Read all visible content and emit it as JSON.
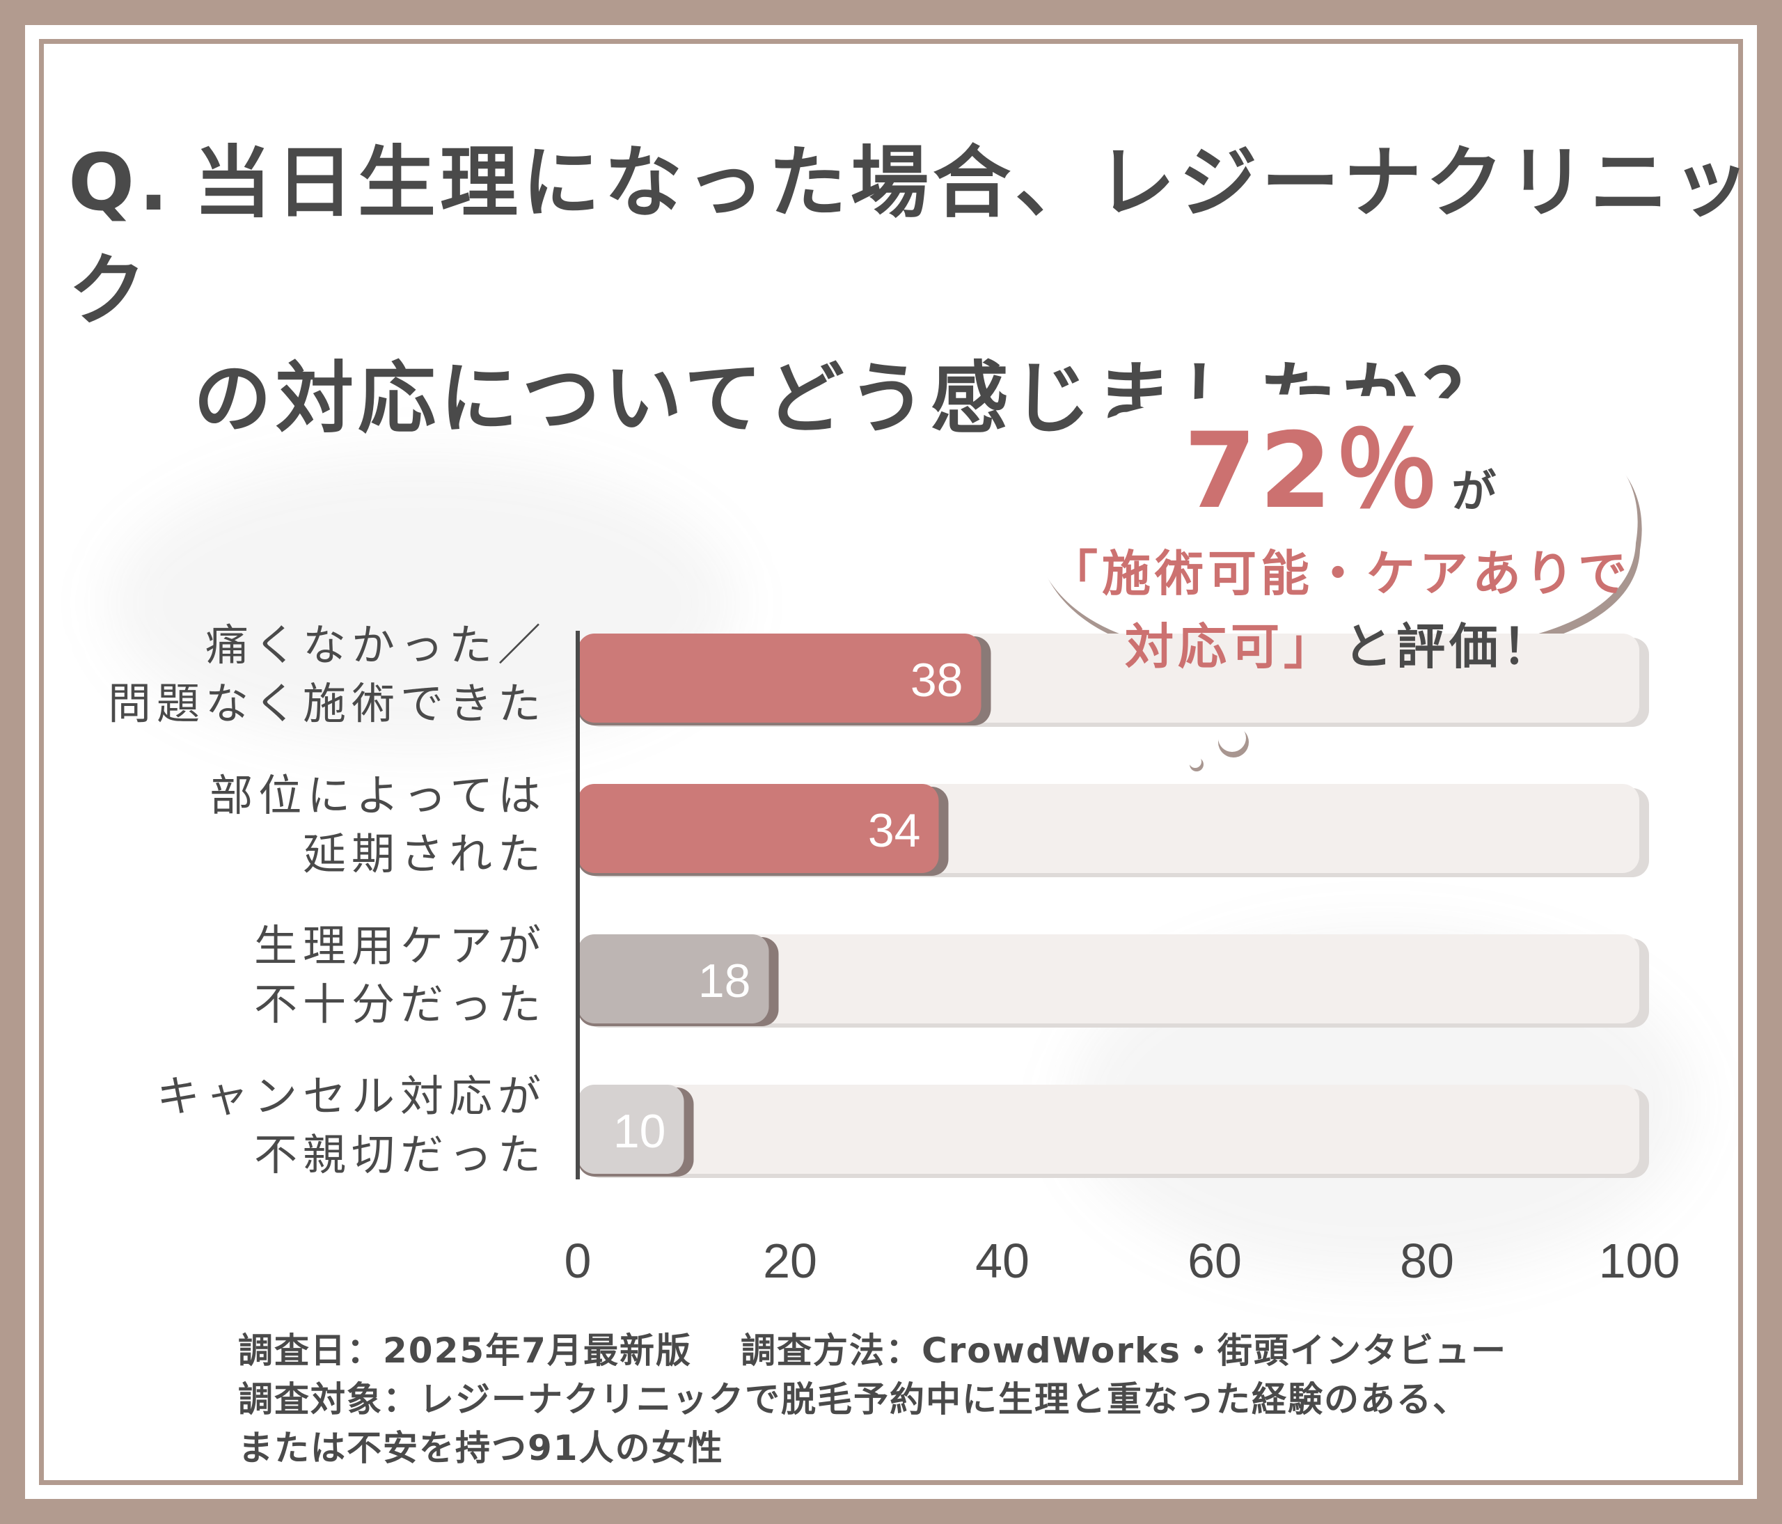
{
  "title": {
    "prefix": "Q.",
    "line1": "当日生理になった場合、レジーナクリニック",
    "line2": "の対応についてどう感じましたか？"
  },
  "callout": {
    "percent": "72％",
    "suffix": "が",
    "line2": "「施術可能・ケアありで",
    "line3_accent": "対応可」",
    "line3_rest": "と評価！"
  },
  "chart_data": {
    "type": "bar",
    "orientation": "horizontal",
    "categories": [
      [
        "痛くなかった／",
        "問題なく施術できた"
      ],
      [
        "部位によっては",
        "延期された"
      ],
      [
        "生理用ケアが",
        "不十分だった"
      ],
      [
        "キャンセル対応が",
        "不親切だった"
      ]
    ],
    "values": [
      38,
      34,
      18,
      10
    ],
    "data_labels": [
      "38",
      "34",
      "18",
      "10"
    ],
    "xlim": [
      0,
      100
    ],
    "xticks": [
      "0",
      "20",
      "40",
      "60",
      "80",
      "100"
    ],
    "grid": false,
    "colors": {
      "bars": [
        "#cc7a78",
        "#cc7a78",
        "#bdb5b3",
        "#d6d2d1"
      ],
      "track": "#f3efed",
      "bar_shadow": "#8a7a77",
      "axis": "#4a4a4a"
    }
  },
  "footer": {
    "date": "調査日：2025年7月最新版",
    "method": "調査方法：CrowdWorks・街頭インタビュー",
    "target_line1": "調査対象：レジーナクリニックで脱毛予約中に生理と重なった経験のある、",
    "target_line2": "または不安を持つ91人の女性"
  }
}
